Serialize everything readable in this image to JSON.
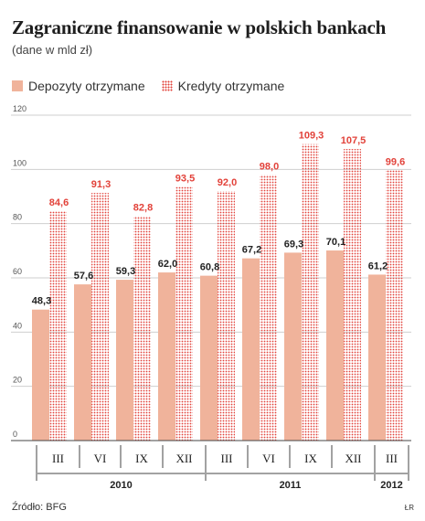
{
  "header": {
    "title": "Zagraniczne finansowanie w polskich bankach",
    "subtitle": "(dane w mld zł)"
  },
  "footer": {
    "source": "Źródło: BFG",
    "author": "ŁR"
  },
  "colors": {
    "deposits": "#f0b39b",
    "loans": "#e2423a",
    "loan_label": "#e2423a",
    "deposit_label": "#222222"
  },
  "chart_data": {
    "type": "bar",
    "title": "Zagraniczne finansowanie w polskich bankach",
    "subtitle": "(dane w mld zł)",
    "categories": [
      "III",
      "VI",
      "IX",
      "XII",
      "III",
      "VI",
      "IX",
      "XII",
      "III"
    ],
    "groups": [
      {
        "label": "2010",
        "count": 4
      },
      {
        "label": "2011",
        "count": 4
      },
      {
        "label": "2012",
        "count": 1
      }
    ],
    "series": [
      {
        "name": "Depozyty otrzymane",
        "values": [
          48.3,
          57.6,
          59.3,
          62.0,
          60.8,
          67.2,
          69.3,
          70.1,
          61.2
        ],
        "labels": [
          "48,3",
          "57,6",
          "59,3",
          "62,0",
          "60,8",
          "67,2",
          "69,3",
          "70,1",
          "61,2"
        ]
      },
      {
        "name": "Kredyty otrzymane",
        "values": [
          84.6,
          91.3,
          82.8,
          93.5,
          92.0,
          98.0,
          109.3,
          107.5,
          99.6
        ],
        "labels": [
          "84,6",
          "91,3",
          "82,8",
          "93,5",
          "92,0",
          "98,0",
          "109,3",
          "107,5",
          "99,6"
        ]
      }
    ],
    "y_ticks": [
      "0",
      "20",
      "40",
      "60",
      "80",
      "100",
      "120"
    ],
    "ylim": [
      0,
      120
    ],
    "grid": true,
    "legend": "top-left"
  }
}
